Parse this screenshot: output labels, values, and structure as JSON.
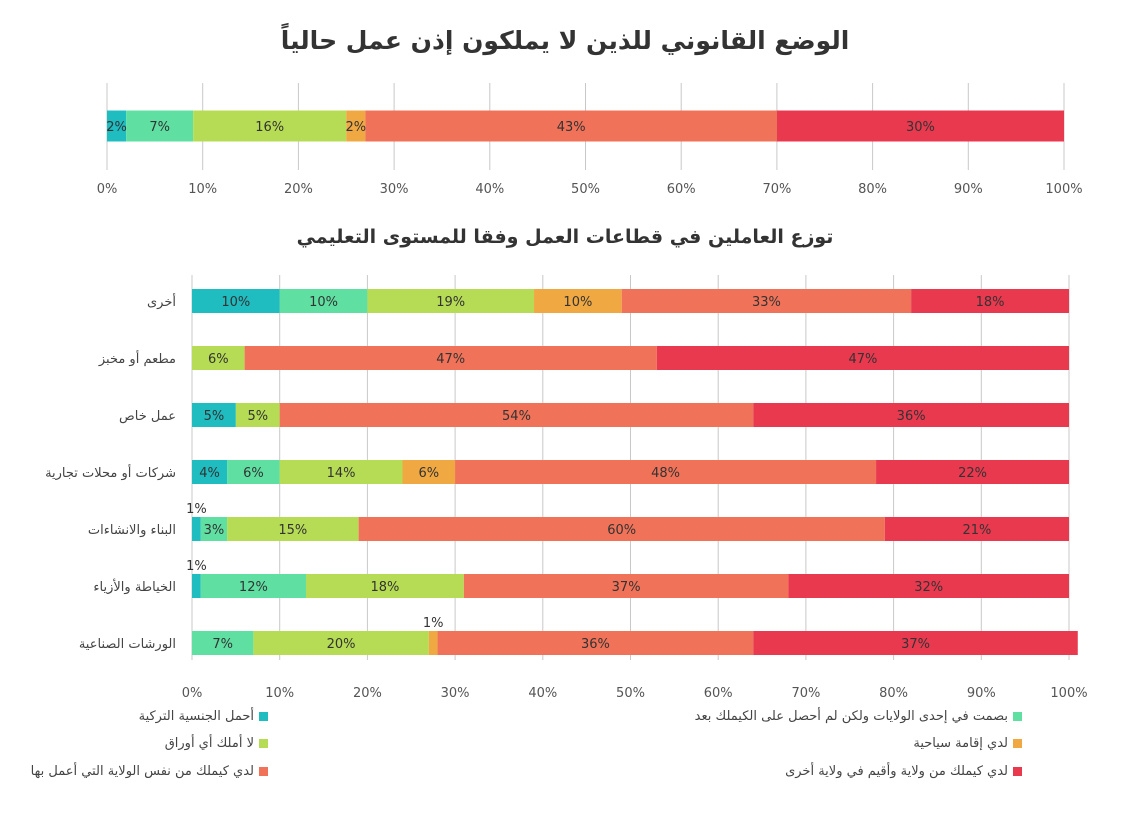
{
  "colors": [
    "#1fbcc0",
    "#5fe0a2",
    "#b6dc55",
    "#f0a842",
    "#f07258",
    "#e8394f"
  ],
  "legend": [
    "أحمل الجنسية التركية",
    "بصمت في إحدى الولايات ولكن لم أحصل على الكيملك بعد",
    "لا أملك أي أوراق",
    "لدي إقامة سياحية",
    "لدي كيملك من نفس الولاية التي أعمل بها",
    "لدي كيملك من ولاية وأقيم في ولاية أخرى"
  ],
  "chart_data": [
    {
      "type": "bar",
      "orientation": "horizontal",
      "stacked": "percent",
      "title": "الوضع القانوني للذين لا يملكون إذن عمل حالياً",
      "xlim": [
        0,
        100
      ],
      "x_ticks": [
        "0%",
        "10%",
        "20%",
        "30%",
        "40%",
        "50%",
        "60%",
        "70%",
        "80%",
        "90%",
        "100%"
      ],
      "grid": true,
      "categories": [
        ""
      ],
      "series": [
        {
          "name": "أحمل الجنسية التركية",
          "values": [
            2
          ]
        },
        {
          "name": "بصمت في إحدى الولايات ولكن لم أحصل على الكيملك بعد",
          "values": [
            7
          ]
        },
        {
          "name": "لا أملك أي أوراق",
          "values": [
            16
          ]
        },
        {
          "name": "لدي إقامة سياحية",
          "values": [
            2
          ]
        },
        {
          "name": "لدي كيملك من نفس الولاية التي أعمل بها",
          "values": [
            43
          ]
        },
        {
          "name": "لدي كيملك من ولاية وأقيم في ولاية أخرى",
          "values": [
            30
          ]
        }
      ]
    },
    {
      "type": "bar",
      "orientation": "horizontal",
      "stacked": "percent",
      "title": "توزع العاملين في قطاعات العمل وفقا للمستوى التعليمي",
      "xlim": [
        0,
        100
      ],
      "x_ticks": [
        "0%",
        "10%",
        "20%",
        "30%",
        "40%",
        "50%",
        "60%",
        "70%",
        "80%",
        "90%",
        "100%"
      ],
      "grid": true,
      "legend_position": "bottom",
      "categories": [
        "أخرى",
        "مطعم أو مخبز",
        "عمل خاص",
        "شركات أو محلات تجارية",
        "البناء والانشاءات",
        "الخياطة والأزياء",
        "الورشات الصناعية"
      ],
      "series": [
        {
          "name": "أحمل الجنسية التركية",
          "values": [
            10,
            0,
            5,
            4,
            1,
            1,
            0
          ]
        },
        {
          "name": "بصمت في إحدى الولايات ولكن لم أحصل على الكيملك بعد",
          "values": [
            10,
            0,
            0,
            6,
            3,
            12,
            7
          ]
        },
        {
          "name": "لا أملك أي أوراق",
          "values": [
            19,
            6,
            5,
            14,
            15,
            18,
            20
          ]
        },
        {
          "name": "لدي إقامة سياحية",
          "values": [
            10,
            0,
            0,
            6,
            0,
            0,
            1
          ]
        },
        {
          "name": "لدي كيملك من نفس الولاية التي أعمل بها",
          "values": [
            33,
            47,
            54,
            48,
            60,
            37,
            36
          ]
        },
        {
          "name": "لدي كيملك من ولاية وأقيم في ولاية أخرى",
          "values": [
            18,
            47,
            36,
            22,
            21,
            32,
            37
          ]
        }
      ]
    }
  ]
}
